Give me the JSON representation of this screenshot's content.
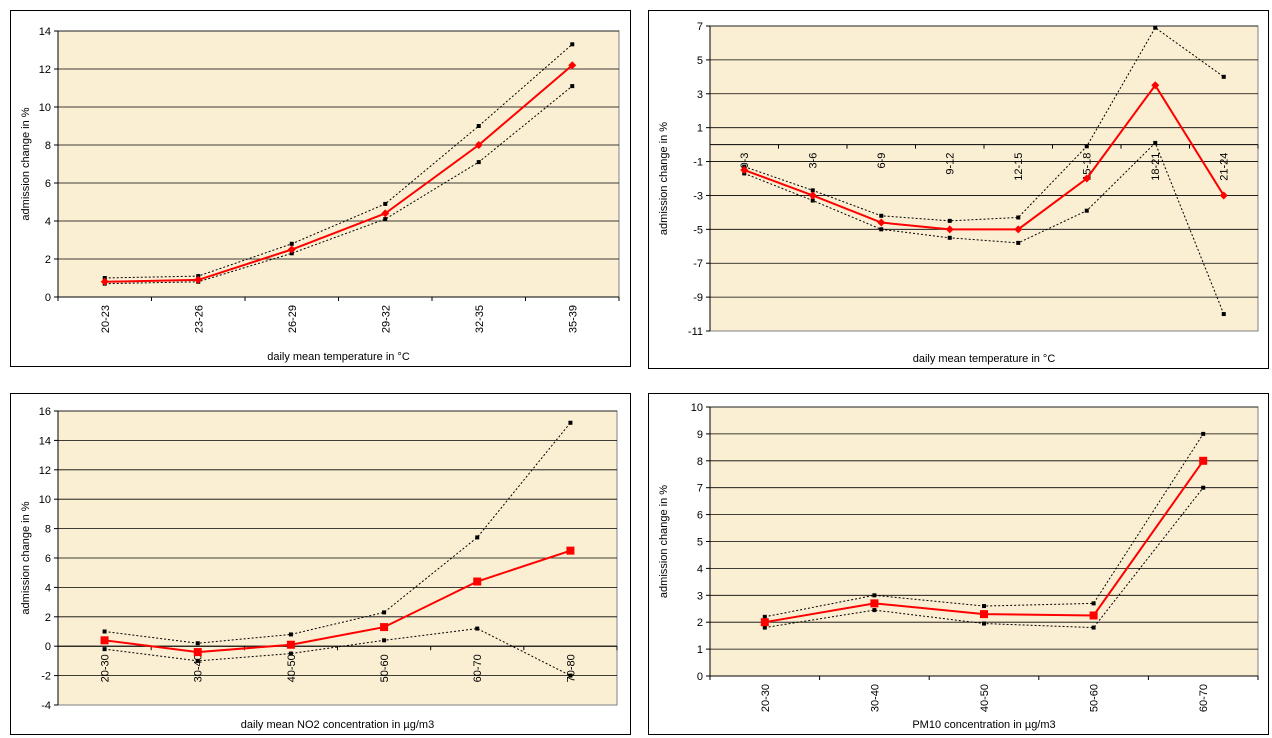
{
  "colors": {
    "plot_bg": "#fbefd3",
    "grid": "#000000",
    "main_line": "#ff0000",
    "ci_line": "#000000"
  },
  "chart_data": [
    {
      "type": "line",
      "categories": [
        "20-23",
        "23-26",
        "26-29",
        "29-32",
        "32-35",
        "35-39"
      ],
      "series": [
        {
          "role": "estimate",
          "marker": "diamond",
          "values": [
            0.8,
            0.9,
            2.5,
            4.4,
            8.0,
            12.2
          ]
        },
        {
          "role": "upper-ci",
          "marker": "point",
          "values": [
            1.0,
            1.1,
            2.8,
            4.9,
            9.0,
            13.3
          ]
        },
        {
          "role": "lower-ci",
          "marker": "point",
          "values": [
            0.7,
            0.8,
            2.3,
            4.1,
            7.1,
            11.1
          ]
        }
      ],
      "xlabel": "daily mean temperature in °C",
      "ylabel": "admission change in %",
      "ylim": [
        0,
        14
      ],
      "yticks": [
        0,
        2,
        4,
        6,
        8,
        10,
        12,
        14
      ],
      "grid": true,
      "x_axis_at": "bottom"
    },
    {
      "type": "line",
      "categories": [
        "0-3",
        "3-6",
        "6-9",
        "9-12",
        "12-15",
        "15-18",
        "18-21",
        "21-24"
      ],
      "series": [
        {
          "role": "estimate",
          "marker": "diamond",
          "values": [
            -1.5,
            -3.0,
            -4.6,
            -5.0,
            -5.0,
            -2.0,
            3.5,
            -3.0
          ]
        },
        {
          "role": "upper-ci",
          "marker": "point",
          "values": [
            -1.3,
            -2.7,
            -4.2,
            -4.5,
            -4.3,
            -0.1,
            6.9,
            4.0
          ]
        },
        {
          "role": "lower-ci",
          "marker": "point",
          "values": [
            -1.7,
            -3.3,
            -5.0,
            -5.5,
            -5.8,
            -3.9,
            0.1,
            -10.0
          ]
        }
      ],
      "xlabel": "daily mean temperature in °C",
      "ylabel": "admission change in %",
      "ylim": [
        -11,
        7
      ],
      "yticks": [
        -11,
        -9,
        -7,
        -5,
        -3,
        -1,
        1,
        3,
        5,
        7
      ],
      "grid": true,
      "x_axis_at": "zero"
    },
    {
      "type": "line",
      "categories": [
        "20-30",
        "30-40",
        "40-50",
        "50-60",
        "60-70",
        "70-80"
      ],
      "series": [
        {
          "role": "estimate",
          "marker": "square",
          "values": [
            0.4,
            -0.4,
            0.1,
            1.3,
            4.4,
            6.5
          ]
        },
        {
          "role": "upper-ci",
          "marker": "point",
          "values": [
            1.0,
            0.2,
            0.8,
            2.3,
            7.4,
            15.2
          ]
        },
        {
          "role": "lower-ci",
          "marker": "point",
          "values": [
            -0.2,
            -1.0,
            -0.5,
            0.4,
            1.2,
            -2.0
          ]
        }
      ],
      "xlabel": "daily mean NO2 concentration in µg/m3",
      "ylabel": "admission change in %",
      "ylim": [
        -4,
        16
      ],
      "yticks": [
        -4,
        -2,
        0,
        2,
        4,
        6,
        8,
        10,
        12,
        14,
        16
      ],
      "grid": true,
      "x_axis_at": "zero"
    },
    {
      "type": "line",
      "categories": [
        "20-30",
        "30-40",
        "40-50",
        "50-60",
        "60-70"
      ],
      "series": [
        {
          "role": "estimate",
          "marker": "square",
          "values": [
            2.0,
            2.7,
            2.3,
            2.25,
            8.0
          ]
        },
        {
          "role": "upper-ci",
          "marker": "point",
          "values": [
            2.2,
            3.0,
            2.6,
            2.7,
            9.0
          ]
        },
        {
          "role": "lower-ci",
          "marker": "point",
          "values": [
            1.8,
            2.45,
            1.95,
            1.8,
            7.0
          ]
        }
      ],
      "xlabel": "PM10 concentration in µg/m3",
      "ylabel": "admission change in %",
      "ylim": [
        0,
        10
      ],
      "yticks": [
        0,
        1,
        2,
        3,
        4,
        5,
        6,
        7,
        8,
        9,
        10
      ],
      "grid": true,
      "x_axis_at": "bottom"
    }
  ]
}
